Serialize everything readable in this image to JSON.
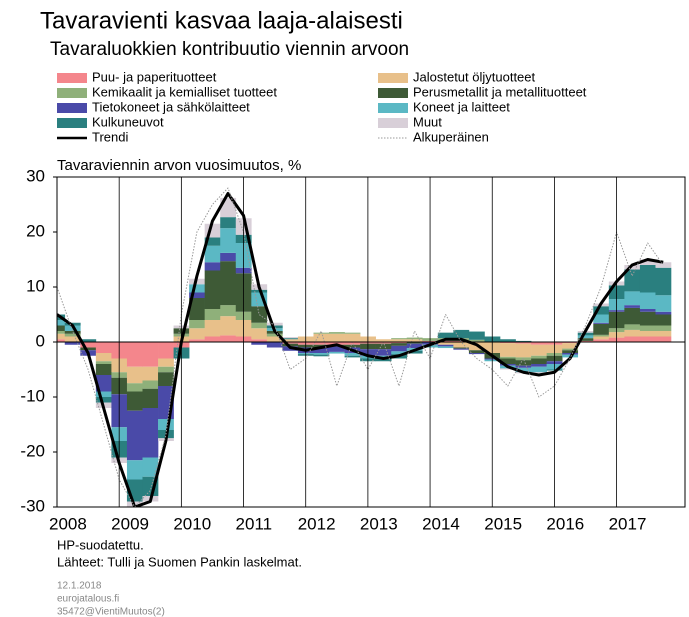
{
  "chart_data": {
    "type": "stacked-bar-line",
    "title": "Tavaravienti kasvaa laaja-alaisesti",
    "subtitle": "Tavaraluokkien kontribuutio viennin arvoon",
    "ylabel": "Tavaraviennin arvon vuosimuutos, %",
    "notes": [
      "HP-suodatettu.",
      "Lähteet: Tulli ja Suomen Pankin laskelmat."
    ],
    "footer": [
      "12.1.2018",
      "eurojatalous.fi",
      "35472@VientiMuutos(2)"
    ],
    "x": [
      2008,
      2008.25,
      2008.5,
      2008.75,
      2009,
      2009.25,
      2009.5,
      2009.75,
      2010,
      2010.25,
      2010.5,
      2010.75,
      2011,
      2011.25,
      2011.5,
      2011.75,
      2012,
      2012.25,
      2012.5,
      2012.75,
      2013,
      2013.25,
      2013.5,
      2013.75,
      2014,
      2014.25,
      2014.5,
      2014.75,
      2015,
      2015.25,
      2015.5,
      2015.75,
      2016,
      2016.25,
      2016.5,
      2016.75,
      2017,
      2017.25,
      2017.5,
      2017.75
    ],
    "xlim": [
      2008,
      2018.1
    ],
    "xticks": [
      2008,
      2009,
      2010,
      2011,
      2012,
      2013,
      2014,
      2015,
      2016,
      2017
    ],
    "ylim": [
      -30,
      30
    ],
    "yticks": [
      -30,
      -20,
      -10,
      0,
      10,
      20,
      30
    ],
    "grid_x": true,
    "series": [
      {
        "name": "Puu- ja paperituotteet",
        "kind": "bar",
        "color": "#f4868c",
        "values": [
          0.5,
          0,
          -1,
          -2,
          -3,
          -4.5,
          -4.5,
          -3,
          -1,
          0.5,
          1,
          1.2,
          1,
          0.5,
          0,
          -0.3,
          -0.5,
          -0.5,
          -0.5,
          -0.5,
          -0.3,
          -0.3,
          -0.2,
          0,
          0.2,
          0.2,
          0.2,
          0.1,
          0,
          -0.2,
          -0.3,
          -0.5,
          -0.5,
          -0.2,
          0.2,
          0.5,
          0.8,
          1,
          1,
          1
        ]
      },
      {
        "name": "Jalostetut öljytuotteet",
        "kind": "bar",
        "color": "#e8c08a",
        "values": [
          1,
          1,
          0,
          -1.5,
          -2.5,
          -3,
          -2.5,
          -1.5,
          1,
          2,
          3,
          3.5,
          3,
          2,
          1,
          0.5,
          1,
          1.5,
          1.5,
          1.5,
          1,
          0.5,
          0.5,
          0.5,
          0,
          -0.5,
          -1,
          -1.5,
          -2,
          -2.5,
          -2.5,
          -2,
          -1.5,
          -1,
          0,
          0.5,
          1,
          1.2,
          1,
          1
        ]
      },
      {
        "name": "Kemikaalit ja kemialliset tuotteet",
        "kind": "bar",
        "color": "#8fb07a",
        "values": [
          0.5,
          0.5,
          0,
          -0.5,
          -1,
          -1.5,
          -1.5,
          -1,
          0.5,
          1.5,
          2,
          2,
          1.5,
          1,
          0.5,
          0,
          0,
          0.2,
          0.3,
          0.2,
          0,
          0,
          0.2,
          0.3,
          0.5,
          0.5,
          0.5,
          0.3,
          0,
          -0.3,
          -0.5,
          -0.5,
          -0.5,
          -0.3,
          0,
          0.3,
          0.7,
          1,
          1,
          1
        ]
      },
      {
        "name": "Perusmetallit ja metallituotteet",
        "kind": "bar",
        "color": "#3e5a36",
        "values": [
          1,
          0.5,
          -0.5,
          -2,
          -3,
          -3.5,
          -3.5,
          -2.5,
          1,
          4,
          7,
          8,
          7,
          3,
          0.5,
          -0.5,
          -0.5,
          -0.5,
          -0.3,
          -0.5,
          -1,
          -1,
          -0.5,
          -0.3,
          0,
          0,
          -0.2,
          -0.5,
          -1,
          -1,
          -1,
          -1,
          -1,
          -0.5,
          0.5,
          2,
          3,
          3,
          2.5,
          2
        ]
      },
      {
        "name": "Tietokoneet ja sähkölaitteet",
        "kind": "bar",
        "color": "#4a4aa8",
        "values": [
          0,
          -0.5,
          -1,
          -3,
          -6,
          -9,
          -9,
          -6,
          0,
          1,
          1.5,
          1.5,
          1,
          -0.5,
          -1,
          -0.8,
          -1,
          -1,
          -1,
          -1,
          -1.2,
          -1.2,
          -1,
          -0.8,
          -0.5,
          -0.3,
          -0.2,
          -0.2,
          -0.2,
          -0.3,
          -0.4,
          -0.5,
          -0.5,
          -0.3,
          0,
          0.2,
          0.3,
          0.5,
          0.5,
          0.5
        ]
      },
      {
        "name": "Koneet ja laitteet",
        "kind": "bar",
        "color": "#5bb8c4",
        "values": [
          1,
          1,
          0,
          -1,
          -2.5,
          -3.5,
          -3.5,
          -2,
          0,
          1.5,
          3,
          4.5,
          4.5,
          2.5,
          0.5,
          0,
          -0.2,
          -0.3,
          -0.3,
          -0.5,
          -0.5,
          -0.5,
          -0.5,
          -0.5,
          -0.5,
          -0.3,
          0,
          0,
          -0.3,
          -0.5,
          -0.8,
          -1,
          -1,
          -0.5,
          0.5,
          1.5,
          2,
          2.5,
          3,
          3
        ]
      },
      {
        "name": "Kulkuneuvot",
        "kind": "bar",
        "color": "#2a7f7f",
        "values": [
          1,
          0.5,
          0.5,
          -1,
          -3,
          -4,
          -3.5,
          -1.5,
          -2,
          0,
          1.5,
          2,
          1.5,
          0.5,
          0.5,
          0.2,
          -0.3,
          -0.3,
          0,
          -0.3,
          -0.5,
          -0.5,
          -0.8,
          -0.5,
          0,
          1,
          1.5,
          1.5,
          1,
          0.5,
          0.2,
          0,
          -0.2,
          0,
          0.5,
          1.5,
          2.5,
          4,
          5,
          5
        ]
      },
      {
        "name": "Muut",
        "kind": "bar",
        "color": "#d8cfd8",
        "values": [
          0,
          0,
          0,
          -1,
          -1,
          -1,
          -1,
          -0.5,
          0.5,
          1,
          2.5,
          3.5,
          3,
          1,
          0.5,
          0.2,
          0,
          0,
          0,
          0,
          0,
          0,
          0,
          0,
          0,
          0,
          0,
          0,
          0,
          -0.2,
          -0.2,
          -0.2,
          0,
          0,
          0.3,
          0.5,
          0.7,
          0.8,
          1,
          1
        ]
      },
      {
        "name": "Trendi",
        "kind": "line",
        "color": "#000000",
        "values": [
          5,
          3,
          -2,
          -12,
          -22,
          -30,
          -29,
          -18,
          0,
          12,
          22,
          27,
          23,
          10,
          2,
          -1,
          -1.5,
          -1,
          -0.5,
          -1.5,
          -2.5,
          -3,
          -2.5,
          -1.5,
          -0.5,
          0.5,
          0.5,
          -0.5,
          -2.5,
          -4.5,
          -5.5,
          -6,
          -5.5,
          -3,
          2,
          7,
          11,
          14,
          15,
          14.5
        ]
      },
      {
        "name": "Alkuperäinen",
        "kind": "dotted",
        "color": "#999999",
        "values": [
          10,
          2,
          -5,
          -15,
          -25,
          -30,
          -27,
          -17,
          5,
          20,
          25,
          28,
          20,
          5,
          3,
          -5,
          -3,
          2,
          -8,
          0,
          -5,
          0,
          -8,
          2,
          -3,
          5,
          0,
          -3,
          -5,
          -8,
          -3,
          -10,
          -8,
          -3,
          3,
          10,
          20,
          12,
          18,
          14
        ]
      }
    ]
  }
}
